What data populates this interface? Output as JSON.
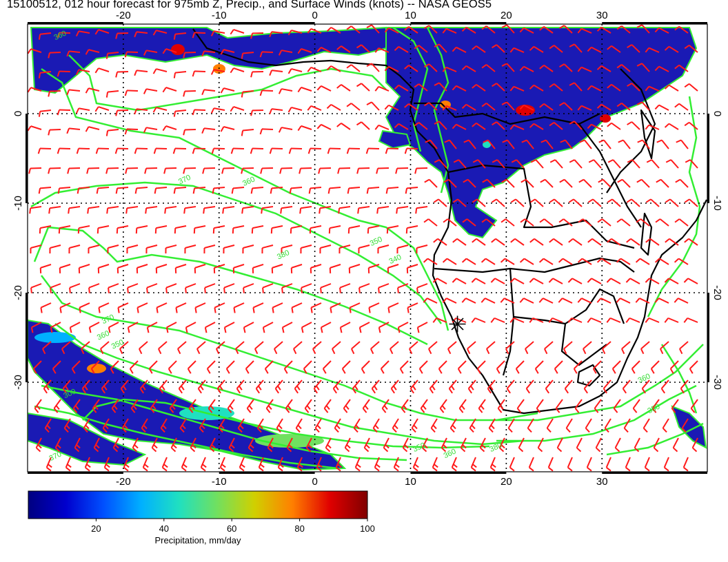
{
  "title": "15100512, 012 hour forecast for 975mb Z, Precip., and Surface Winds (knots) -- NASA GEOS5",
  "map": {
    "lon_range": [
      -30,
      41
    ],
    "lat_range": [
      -40,
      10
    ],
    "lon_ticks": [
      "-20",
      "-10",
      "0",
      "10",
      "20",
      "30"
    ],
    "lon_tick_values": [
      -20,
      -10,
      0,
      10,
      20,
      30
    ],
    "lat_ticks": [
      "0",
      "-10",
      "-20",
      "-30"
    ],
    "lat_tick_values": [
      0,
      -10,
      -20,
      -30
    ],
    "marker": {
      "name": "asterisk-marker",
      "lon": 14.9,
      "lat": -23.5
    },
    "contour_labels": [
      {
        "text": "360",
        "lon": -26.5,
        "lat": 8.5
      },
      {
        "text": "370",
        "lon": -13.5,
        "lat": -7.6
      },
      {
        "text": "360",
        "lon": -6.8,
        "lat": -7.8
      },
      {
        "text": "380",
        "lon": -3.2,
        "lat": -16.0
      },
      {
        "text": "350",
        "lon": 6.5,
        "lat": -14.5
      },
      {
        "text": "340",
        "lon": 8.5,
        "lat": -16.5
      },
      {
        "text": "370",
        "lon": -21.5,
        "lat": -23.2
      },
      {
        "text": "360",
        "lon": -22.0,
        "lat": -25.0
      },
      {
        "text": "350",
        "lon": -20.5,
        "lat": -26.0
      },
      {
        "text": "300",
        "lon": -25.5,
        "lat": -31.5
      },
      {
        "text": "370",
        "lon": -27.0,
        "lat": -38.5
      },
      {
        "text": "350",
        "lon": 11.0,
        "lat": -37.5
      },
      {
        "text": "360",
        "lon": 14.2,
        "lat": -38.2
      },
      {
        "text": "380",
        "lon": 19.0,
        "lat": -37.5
      },
      {
        "text": "360",
        "lon": 34.5,
        "lat": -29.8
      },
      {
        "text": "350",
        "lon": 35.5,
        "lat": -33.2
      }
    ]
  },
  "colorbar": {
    "label": "Precipitation, mm/day",
    "min": 0,
    "max": 100,
    "ticks": [
      "20",
      "40",
      "60",
      "80",
      "100"
    ],
    "tick_values": [
      20,
      40,
      60,
      80,
      100
    ],
    "colors": [
      "#000080",
      "#0000cd",
      "#0050ff",
      "#00b0ff",
      "#20e0c0",
      "#70e060",
      "#d0d000",
      "#ff8000",
      "#e00000",
      "#800000"
    ]
  },
  "colors": {
    "precip": "#1a1ab4",
    "contour": "#33ee33",
    "wind_barb": "#ff1a1a",
    "coastline": "#000000",
    "grid": "#000000"
  }
}
